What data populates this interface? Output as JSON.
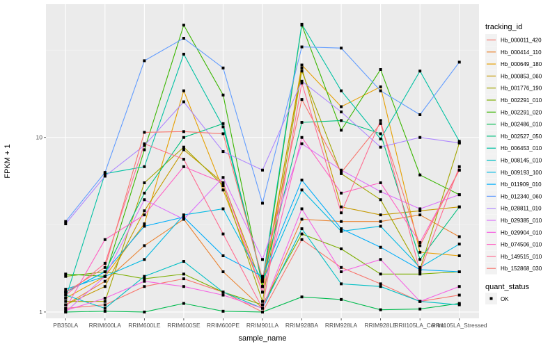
{
  "chart_data": {
    "type": "line",
    "title": "",
    "xlabel": "sample_name",
    "ylabel": "FPKM + 1",
    "yscale": "log10",
    "ylim": [
      0.92,
      58
    ],
    "yticks": [
      1,
      10
    ],
    "ytick_labels": [
      "1",
      "10"
    ],
    "grid": true,
    "legend_placement": "right",
    "categories": [
      "PB350LA",
      "RRIM600LA",
      "RRIM600LE",
      "RRIM600SE",
      "RRIM600PE",
      "RRIM901LA",
      "RRIM928BA",
      "RRIM928LA",
      "RRIM928LE",
      "RRII105LA_Control",
      "RRII105LA_Stressed"
    ],
    "legend_title": "tracking_id",
    "shape_legend_title": "quant_status",
    "shape_legend_items": [
      "OK"
    ],
    "series": [
      {
        "name": "Hb_000011_420",
        "color": "#F8766D",
        "values": [
          1.05,
          1.1,
          1.4,
          1.55,
          1.3,
          1.0,
          2.6,
          1.8,
          1.45,
          1.15,
          1.25
        ]
      },
      {
        "name": "Hb_000414_110",
        "color": "#EA8331",
        "values": [
          1.1,
          1.5,
          2.4,
          3.4,
          1.7,
          1.05,
          3.4,
          3.3,
          3.3,
          3.6,
          2.7
        ]
      },
      {
        "name": "Hb_000649_180",
        "color": "#E69F00",
        "values": [
          1.2,
          1.6,
          3.2,
          18.5,
          5.0,
          1.3,
          26.0,
          15.0,
          19.5,
          2.2,
          2.1
        ]
      },
      {
        "name": "Hb_000853_060",
        "color": "#C59900",
        "values": [
          1.1,
          1.4,
          3.8,
          8.5,
          5.5,
          1.4,
          25.0,
          4.0,
          3.6,
          3.8,
          4.0
        ]
      },
      {
        "name": "Hb_001776_190",
        "color": "#A3A500",
        "values": [
          1.15,
          1.15,
          5.5,
          8.8,
          5.3,
          1.15,
          24.0,
          6.2,
          4.4,
          1.75,
          9.3
        ]
      },
      {
        "name": "Hb_002291_010",
        "color": "#7CAE00",
        "values": [
          1.6,
          1.7,
          1.55,
          1.65,
          1.3,
          1.1,
          2.8,
          2.3,
          1.65,
          1.65,
          1.7
        ]
      },
      {
        "name": "Hb_002291_020",
        "color": "#39B600",
        "values": [
          1.65,
          1.6,
          8.5,
          44.0,
          17.5,
          1.4,
          44.0,
          11.0,
          24.5,
          6.1,
          4.7
        ]
      },
      {
        "name": "Hb_002486_010",
        "color": "#00BB4E",
        "values": [
          1.0,
          1.01,
          1.0,
          1.12,
          1.01,
          1.0,
          1.22,
          1.18,
          1.03,
          1.04,
          1.12
        ]
      },
      {
        "name": "Hb_002527_050",
        "color": "#00BF7D",
        "values": [
          1.3,
          1.7,
          4.8,
          10.0,
          12.0,
          1.5,
          12.2,
          12.5,
          10.5,
          2.0,
          4.0
        ]
      },
      {
        "name": "Hb_006453_010",
        "color": "#00C1A3",
        "values": [
          1.2,
          6.2,
          6.8,
          30.0,
          11.5,
          1.5,
          44.5,
          18.5,
          9.8,
          24.0,
          9.5
        ]
      },
      {
        "name": "Hb_008145_010",
        "color": "#00BFC4",
        "values": [
          1.25,
          1.05,
          1.6,
          1.95,
          1.3,
          1.05,
          3.0,
          1.45,
          1.4,
          1.15,
          1.1
        ]
      },
      {
        "name": "Hb_009193_100",
        "color": "#00B9E3",
        "values": [
          1.35,
          1.6,
          2.0,
          3.6,
          3.9,
          1.5,
          5.0,
          2.9,
          3.1,
          1.8,
          2.45
        ]
      },
      {
        "name": "Hb_011909_010",
        "color": "#00ADFA",
        "values": [
          1.3,
          1.7,
          3.1,
          3.5,
          2.1,
          1.6,
          5.7,
          3.0,
          2.35,
          1.75,
          1.7
        ]
      },
      {
        "name": "Hb_012340_060",
        "color": "#619CFF",
        "values": [
          3.3,
          6.3,
          27.5,
          37.0,
          25.0,
          4.2,
          33.0,
          32.5,
          18.5,
          13.5,
          27.0
        ]
      },
      {
        "name": "Hb_028811_010",
        "color": "#AE87FF",
        "values": [
          3.2,
          6.0,
          9.0,
          16.0,
          8.3,
          6.5,
          21.0,
          14.0,
          8.8,
          10.0,
          9.3
        ]
      },
      {
        "name": "Hb_029385_010",
        "color": "#DB72FB",
        "values": [
          1.0,
          1.6,
          4.4,
          3.4,
          5.9,
          2.0,
          9.2,
          6.5,
          4.9,
          3.9,
          4.7
        ]
      },
      {
        "name": "Hb_029904_010",
        "color": "#F564E3",
        "values": [
          1.02,
          1.2,
          1.5,
          1.4,
          1.25,
          1.05,
          3.9,
          1.7,
          2.0,
          1.15,
          1.4
        ]
      },
      {
        "name": "Hb_074506_010",
        "color": "#FF61C3",
        "values": [
          1.05,
          2.6,
          3.6,
          6.8,
          5.5,
          1.3,
          10.0,
          4.8,
          5.5,
          2.5,
          6.5
        ]
      },
      {
        "name": "Hb_149515_010",
        "color": "#FF6C91",
        "values": [
          1.25,
          1.9,
          9.2,
          7.5,
          2.8,
          1.05,
          20.5,
          3.7,
          12.5,
          1.7,
          6.8
        ]
      },
      {
        "name": "Hb_152868_030",
        "color": "#F8766D",
        "values": [
          1.3,
          1.8,
          10.7,
          10.8,
          10.5,
          1.55,
          16.5,
          6.3,
          12.0,
          2.4,
          6.5
        ]
      }
    ]
  }
}
